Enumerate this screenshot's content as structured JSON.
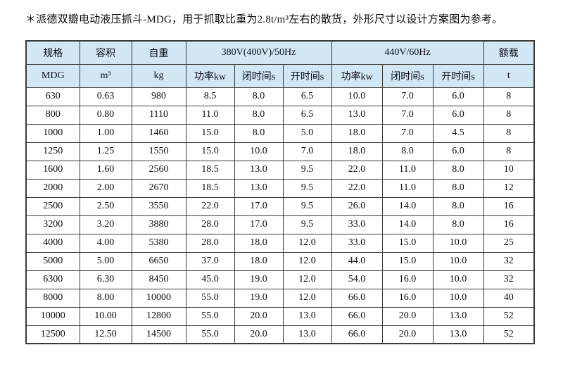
{
  "page": {
    "note": "＊派德双瓣电动液压抓斗-MDG，用于抓取比重为2.8t/m³左右的散货，外形尺寸以设计方案图为参考。"
  },
  "table": {
    "header": {
      "spec": "规格",
      "volume": "容积",
      "weight": "自重",
      "hz50": "380V(400V)/50Hz",
      "hz60": "440V/60Hz",
      "load": "额载",
      "sub": [
        "MDG",
        "m³",
        "kg",
        "功率kw",
        "闭时间s",
        "开时间s",
        "功率kw",
        "闭时间s",
        "开时间s",
        "t"
      ]
    },
    "rows": [
      [
        "630",
        "0.63",
        "980",
        "8.5",
        "8.0",
        "6.5",
        "10.0",
        "7.0",
        "6.0",
        "8"
      ],
      [
        "800",
        "0.80",
        "1110",
        "11.0",
        "8.0",
        "6.5",
        "13.0",
        "7.0",
        "6.0",
        "8"
      ],
      [
        "1000",
        "1.00",
        "1460",
        "15.0",
        "8.0",
        "5.0",
        "18.0",
        "7.0",
        "4.5",
        "8"
      ],
      [
        "1250",
        "1.25",
        "1550",
        "15.0",
        "10.0",
        "7.0",
        "18.0",
        "8.0",
        "6.0",
        "8"
      ],
      [
        "1600",
        "1.60",
        "2560",
        "18.5",
        "13.0",
        "9.5",
        "22.0",
        "11.0",
        "8.0",
        "10"
      ],
      [
        "2000",
        "2.00",
        "2670",
        "18.5",
        "13.0",
        "9.5",
        "22.0",
        "11.0",
        "8.0",
        "12"
      ],
      [
        "2500",
        "2.50",
        "3550",
        "22.0",
        "17.0",
        "9.5",
        "26.0",
        "14.0",
        "8.0",
        "16"
      ],
      [
        "3200",
        "3.20",
        "3880",
        "28.0",
        "17.0",
        "9.5",
        "33.0",
        "14.0",
        "8.0",
        "16"
      ],
      [
        "4000",
        "4.00",
        "5380",
        "28.0",
        "18.0",
        "12.0",
        "33.0",
        "15.0",
        "10.0",
        "25"
      ],
      [
        "5000",
        "5.00",
        "6650",
        "37.0",
        "18.0",
        "12.0",
        "44.0",
        "15.0",
        "10.0",
        "32"
      ],
      [
        "6300",
        "6.30",
        "8450",
        "45.0",
        "19.0",
        "12.0",
        "54.0",
        "16.0",
        "10.0",
        "32"
      ],
      [
        "8000",
        "8.00",
        "10000",
        "55.0",
        "19.0",
        "12.0",
        "66.0",
        "16.0",
        "10.0",
        "40"
      ],
      [
        "10000",
        "10.00",
        "12800",
        "55.0",
        "20.0",
        "13.0",
        "66.0",
        "20.0",
        "13.0",
        "52"
      ],
      [
        "12500",
        "12.50",
        "14500",
        "55.0",
        "20.0",
        "13.0",
        "66.0",
        "20.0",
        "13.0",
        "52"
      ]
    ],
    "colors": {
      "header_bg": "#d2e6f4",
      "border": "#3b3b3b",
      "text": "#0d0d0d"
    }
  }
}
